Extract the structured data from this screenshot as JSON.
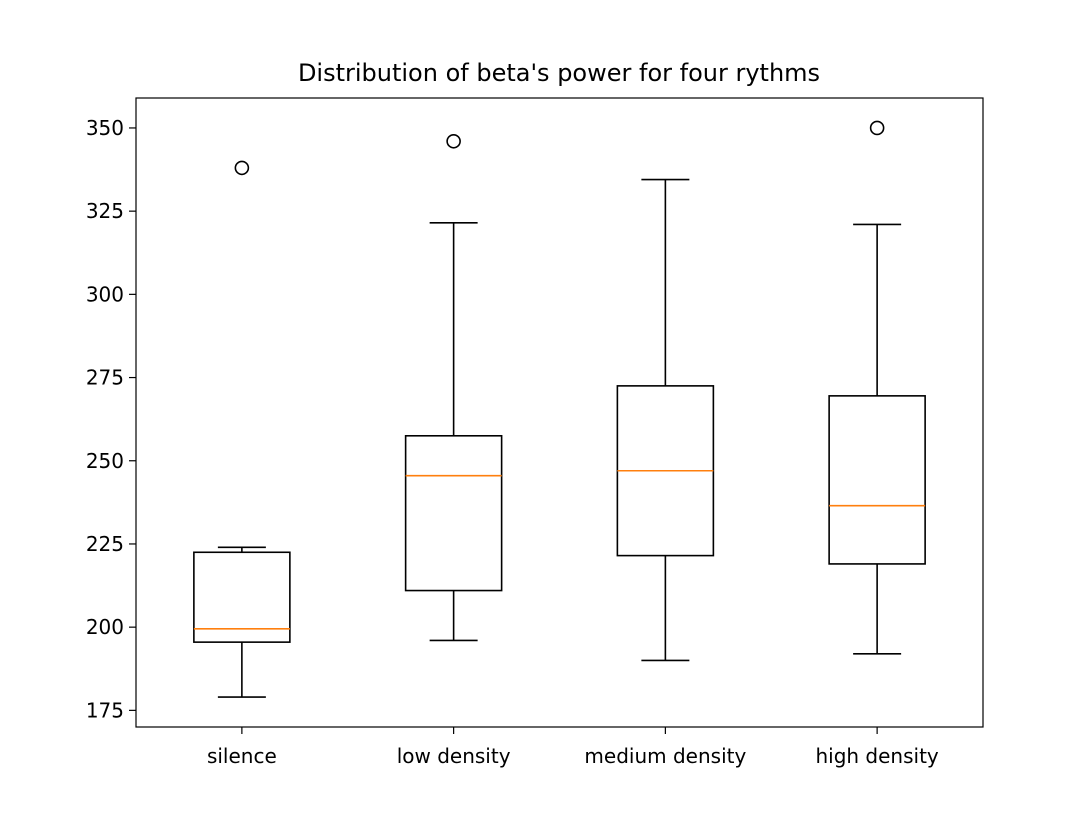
{
  "chart_data": {
    "type": "boxplot",
    "title": "Distribution of beta's power for four rythms",
    "xlabel": "",
    "ylabel": "",
    "categories": [
      "silence",
      "low density",
      "medium density",
      "high density"
    ],
    "ylim": [
      170,
      359
    ],
    "yticks": [
      175,
      200,
      225,
      250,
      275,
      300,
      325,
      350
    ],
    "grid": false,
    "boxes": [
      {
        "category": "silence",
        "whisker_low": 179,
        "q1": 195.5,
        "median": 199.5,
        "q3": 222.5,
        "whisker_high": 224,
        "outliers": [
          338
        ]
      },
      {
        "category": "low density",
        "whisker_low": 196,
        "q1": 211,
        "median": 245.5,
        "q3": 257.5,
        "whisker_high": 321.5,
        "outliers": [
          346
        ]
      },
      {
        "category": "medium density",
        "whisker_low": 190,
        "q1": 221.5,
        "median": 247,
        "q3": 272.5,
        "whisker_high": 334.5,
        "outliers": []
      },
      {
        "category": "high density",
        "whisker_low": 192,
        "q1": 219,
        "median": 236.5,
        "q3": 269.5,
        "whisker_high": 321,
        "outliers": [
          350
        ]
      }
    ],
    "colors": {
      "box": "#000000",
      "median": "#ff7f0e",
      "outlier": "#000000",
      "background": "#ffffff"
    }
  }
}
